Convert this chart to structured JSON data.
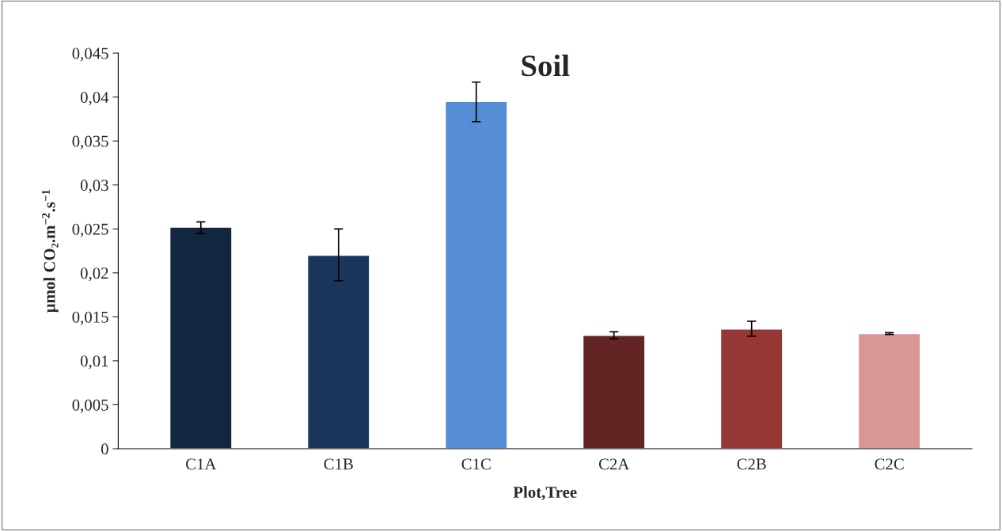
{
  "chart_data": {
    "type": "bar",
    "title": "Soil",
    "xlabel": "Plot,Tree",
    "ylabel": "µmol CO₂.m$^{−2}$.s$^{−1}$",
    "categories": [
      "C1A",
      "C1B",
      "C1C",
      "C2A",
      "C2B",
      "C2C"
    ],
    "values": [
      0.0252,
      0.022,
      0.0395,
      0.0129,
      0.0136,
      0.0131
    ],
    "colors": [
      "#13263f",
      "#1b365d",
      "#558ed5",
      "#632523",
      "#953735",
      "#d99694"
    ],
    "errors": [
      [
        0.0245,
        0.0258
      ],
      [
        0.0191,
        0.025
      ],
      [
        0.0372,
        0.0417
      ],
      [
        0.0125,
        0.0133
      ],
      [
        0.0128,
        0.0145
      ],
      [
        0.013,
        0.0132
      ]
    ],
    "ylim": [
      0,
      0.045
    ],
    "yticks": [
      {
        "value": 0,
        "label": "0"
      },
      {
        "value": 0.005,
        "label": "0,005"
      },
      {
        "value": 0.01,
        "label": "0,01"
      },
      {
        "value": 0.015,
        "label": "0,015"
      },
      {
        "value": 0.02,
        "label": "0,02"
      },
      {
        "value": 0.025,
        "label": "0,025"
      },
      {
        "value": 0.03,
        "label": "0,03"
      },
      {
        "value": 0.035,
        "label": "0,035"
      },
      {
        "value": 0.04,
        "label": "0,04"
      },
      {
        "value": 0.045,
        "label": "0,045"
      }
    ],
    "grid": false,
    "legend": false
  }
}
